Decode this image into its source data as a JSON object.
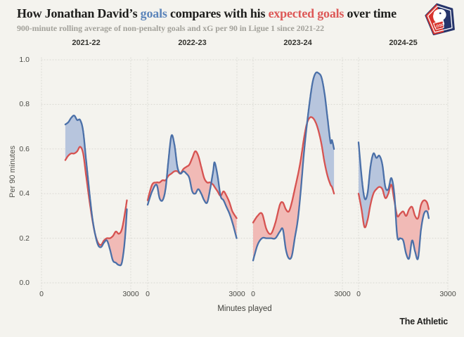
{
  "header": {
    "title_pre": "How Jonathan David’s ",
    "title_goals": "goals",
    "title_mid": " compares with his ",
    "title_xg": "expected goals",
    "title_post": " over time",
    "subtitle": "900-minute rolling average of non-penalty goals and xG per 90 in Ligue 1 since 2021-22",
    "club_badge": "LOSC"
  },
  "footer": {
    "brand": "The Athletic"
  },
  "palette": {
    "background": "#f4f3ee",
    "goals_line": "#4b70a8",
    "goals_fill": "#b7c5dd",
    "xg_line": "#d65351",
    "xg_fill": "#f1bab6",
    "grid": "#d9d8d2",
    "title_goals_color": "#5b84ba",
    "title_xg_color": "#dd5857"
  },
  "chart_data": {
    "type": "line",
    "title": "How Jonathan David's goals compares with his expected goals over time",
    "xlabel": "Minutes played",
    "ylabel": "Per 90 minutes",
    "xlim": [
      0,
      3000
    ],
    "ylim": [
      0.0,
      1.0
    ],
    "xticks": [
      0,
      3000
    ],
    "yticks": [
      1.0,
      0.8,
      0.6,
      0.4,
      0.2,
      0.0
    ],
    "grid": "dotted",
    "legend": "encoded in title colors: blue = goals, red = expected goals (xG)",
    "panels": [
      {
        "season": "2021-22",
        "x": [
          800,
          900,
          1000,
          1100,
          1200,
          1300,
          1400,
          1500,
          1600,
          1700,
          1800,
          1900,
          2000,
          2100,
          2200,
          2300,
          2400,
          2500,
          2600,
          2700,
          2800,
          2870
        ],
        "goals": [
          0.71,
          0.72,
          0.74,
          0.75,
          0.73,
          0.73,
          0.68,
          0.55,
          0.42,
          0.3,
          0.22,
          0.17,
          0.16,
          0.18,
          0.19,
          0.15,
          0.1,
          0.09,
          0.08,
          0.09,
          0.19,
          0.33
        ],
        "xg": [
          0.55,
          0.57,
          0.58,
          0.58,
          0.59,
          0.61,
          0.58,
          0.48,
          0.38,
          0.29,
          0.22,
          0.18,
          0.17,
          0.19,
          0.2,
          0.2,
          0.21,
          0.23,
          0.22,
          0.24,
          0.31,
          0.37
        ]
      },
      {
        "season": "2022-23",
        "x": [
          0,
          150,
          300,
          400,
          500,
          600,
          700,
          800,
          900,
          1000,
          1100,
          1200,
          1300,
          1400,
          1500,
          1600,
          1700,
          1800,
          1900,
          2000,
          2100,
          2200,
          2250,
          2350,
          2450,
          2550,
          2650,
          2750,
          2850,
          2990
        ],
        "goals": [
          0.35,
          0.41,
          0.44,
          0.38,
          0.37,
          0.42,
          0.55,
          0.66,
          0.62,
          0.52,
          0.49,
          0.5,
          0.49,
          0.47,
          0.41,
          0.4,
          0.42,
          0.4,
          0.37,
          0.36,
          0.42,
          0.5,
          0.54,
          0.48,
          0.39,
          0.37,
          0.34,
          0.31,
          0.27,
          0.2
        ],
        "xg": [
          0.37,
          0.44,
          0.45,
          0.45,
          0.46,
          0.46,
          0.48,
          0.49,
          0.5,
          0.5,
          0.49,
          0.51,
          0.52,
          0.53,
          0.56,
          0.59,
          0.57,
          0.52,
          0.47,
          0.45,
          0.45,
          0.44,
          0.43,
          0.41,
          0.39,
          0.41,
          0.39,
          0.36,
          0.32,
          0.29
        ]
      },
      {
        "season": "2023-24",
        "x": [
          0,
          150,
          300,
          450,
          600,
          750,
          900,
          1000,
          1100,
          1200,
          1300,
          1400,
          1500,
          1600,
          1700,
          1800,
          1900,
          2000,
          2100,
          2200,
          2300,
          2400,
          2500,
          2600,
          2650,
          2720
        ],
        "goals": [
          0.1,
          0.17,
          0.2,
          0.2,
          0.2,
          0.2,
          0.23,
          0.24,
          0.15,
          0.11,
          0.12,
          0.2,
          0.28,
          0.41,
          0.57,
          0.7,
          0.81,
          0.9,
          0.94,
          0.94,
          0.92,
          0.85,
          0.74,
          0.63,
          0.64,
          0.6
        ],
        "xg": [
          0.27,
          0.3,
          0.31,
          0.24,
          0.22,
          0.27,
          0.35,
          0.36,
          0.33,
          0.32,
          0.36,
          0.42,
          0.48,
          0.55,
          0.64,
          0.71,
          0.74,
          0.74,
          0.72,
          0.68,
          0.62,
          0.54,
          0.48,
          0.44,
          0.43,
          0.4
        ]
      },
      {
        "season": "2024-25",
        "x": [
          0,
          100,
          200,
          300,
          400,
          500,
          600,
          700,
          800,
          900,
          1000,
          1100,
          1200,
          1300,
          1400,
          1500,
          1600,
          1700,
          1800,
          1900,
          2000,
          2100,
          2200,
          2300,
          2360
        ],
        "goals": [
          0.63,
          0.48,
          0.38,
          0.4,
          0.52,
          0.58,
          0.56,
          0.57,
          0.53,
          0.43,
          0.42,
          0.47,
          0.4,
          0.21,
          0.2,
          0.19,
          0.13,
          0.11,
          0.19,
          0.14,
          0.11,
          0.24,
          0.31,
          0.32,
          0.29
        ],
        "xg": [
          0.4,
          0.33,
          0.25,
          0.28,
          0.35,
          0.4,
          0.42,
          0.43,
          0.42,
          0.38,
          0.4,
          0.44,
          0.37,
          0.3,
          0.31,
          0.32,
          0.3,
          0.33,
          0.34,
          0.3,
          0.29,
          0.35,
          0.37,
          0.36,
          0.33
        ]
      }
    ]
  }
}
